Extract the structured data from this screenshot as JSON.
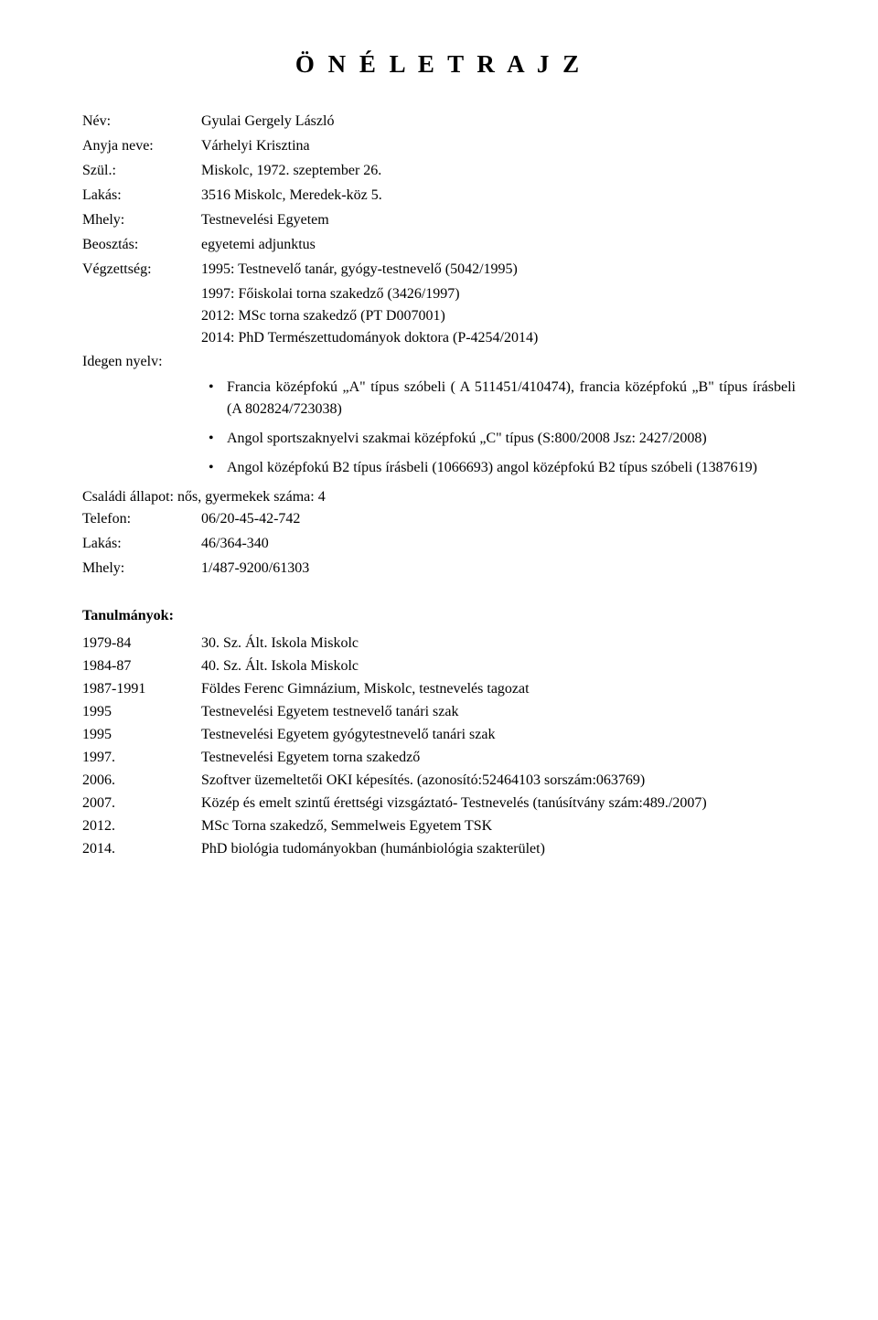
{
  "title": "Ö N É L E T R A J Z",
  "fields": {
    "name_label": "Név:",
    "name_value": "Gyulai Gergely László",
    "mother_label": "Anyja neve:",
    "mother_value": "Várhelyi Krisztina",
    "birth_label": "Szül.:",
    "birth_value": "Miskolc, 1972. szeptember 26.",
    "home_label": "Lakás:",
    "home_value": "3516 Miskolc, Meredek-köz 5.",
    "work_label": "Mhely:",
    "work_value": "Testnevelési Egyetem",
    "position_label": "Beosztás:",
    "position_value": "egyetemi adjunktus",
    "edu_label": "Végzettség:",
    "edu_line1": "1995: Testnevelő tanár, gyógy-testnevelő (5042/1995)",
    "edu_line2": "1997: Főiskolai torna szakedző (3426/1997)",
    "edu_line3": "2012: MSc torna szakedző (PT D007001)",
    "edu_line4": "2014: PhD Természettudományok doktora (P-4254/2014)",
    "lang_label": "Idegen nyelv:",
    "lang_item1": "Francia középfokú „A\" típus szóbeli ( A 511451/410474), francia középfokú „B\" típus írásbeli (A 802824/723038)",
    "lang_item2": "Angol sportszaknyelvi szakmai középfokú „C\" típus (S:800/2008 Jsz: 2427/2008)",
    "lang_item3": "Angol középfokú B2 típus írásbeli (1066693) angol középfokú B2 típus szóbeli (1387619)",
    "family_status": "Családi állapot: nős, gyermekek száma: 4",
    "phone_label": "Telefon:",
    "phone_value": "06/20-45-42-742",
    "home2_label": "Lakás:",
    "home2_value": "46/364-340",
    "work2_label": "Mhely:",
    "work2_value": "1/487-9200/61303"
  },
  "studies": {
    "title": "Tanulmányok:",
    "rows": [
      {
        "year": "1979-84",
        "desc": "30. Sz. Ált. Iskola Miskolc"
      },
      {
        "year": "1984-87",
        "desc": "40. Sz. Ált. Iskola Miskolc"
      },
      {
        "year": "1987-1991",
        "desc": "Földes Ferenc Gimnázium, Miskolc, testnevelés tagozat"
      },
      {
        "year": "1995",
        "desc": "Testnevelési Egyetem testnevelő tanári szak"
      },
      {
        "year": "1995",
        "desc": "Testnevelési Egyetem gyógytestnevelő tanári szak"
      },
      {
        "year": "1997.",
        "desc": "Testnevelési Egyetem torna szakedző"
      },
      {
        "year": "2006.",
        "desc": "Szoftver üzemeltetői OKI képesítés. (azonosító:52464103 sorszám:063769)"
      },
      {
        "year": "2007.",
        "desc": "Közép és emelt szintű érettségi vizsgáztató- Testnevelés (tanúsítvány szám:489./2007)"
      },
      {
        "year": "2012.",
        "desc": "MSc Torna szakedző, Semmelweis Egyetem TSK"
      },
      {
        "year": "2014.",
        "desc": "PhD biológia tudományokban (humánbiológia szakterület)"
      }
    ]
  }
}
